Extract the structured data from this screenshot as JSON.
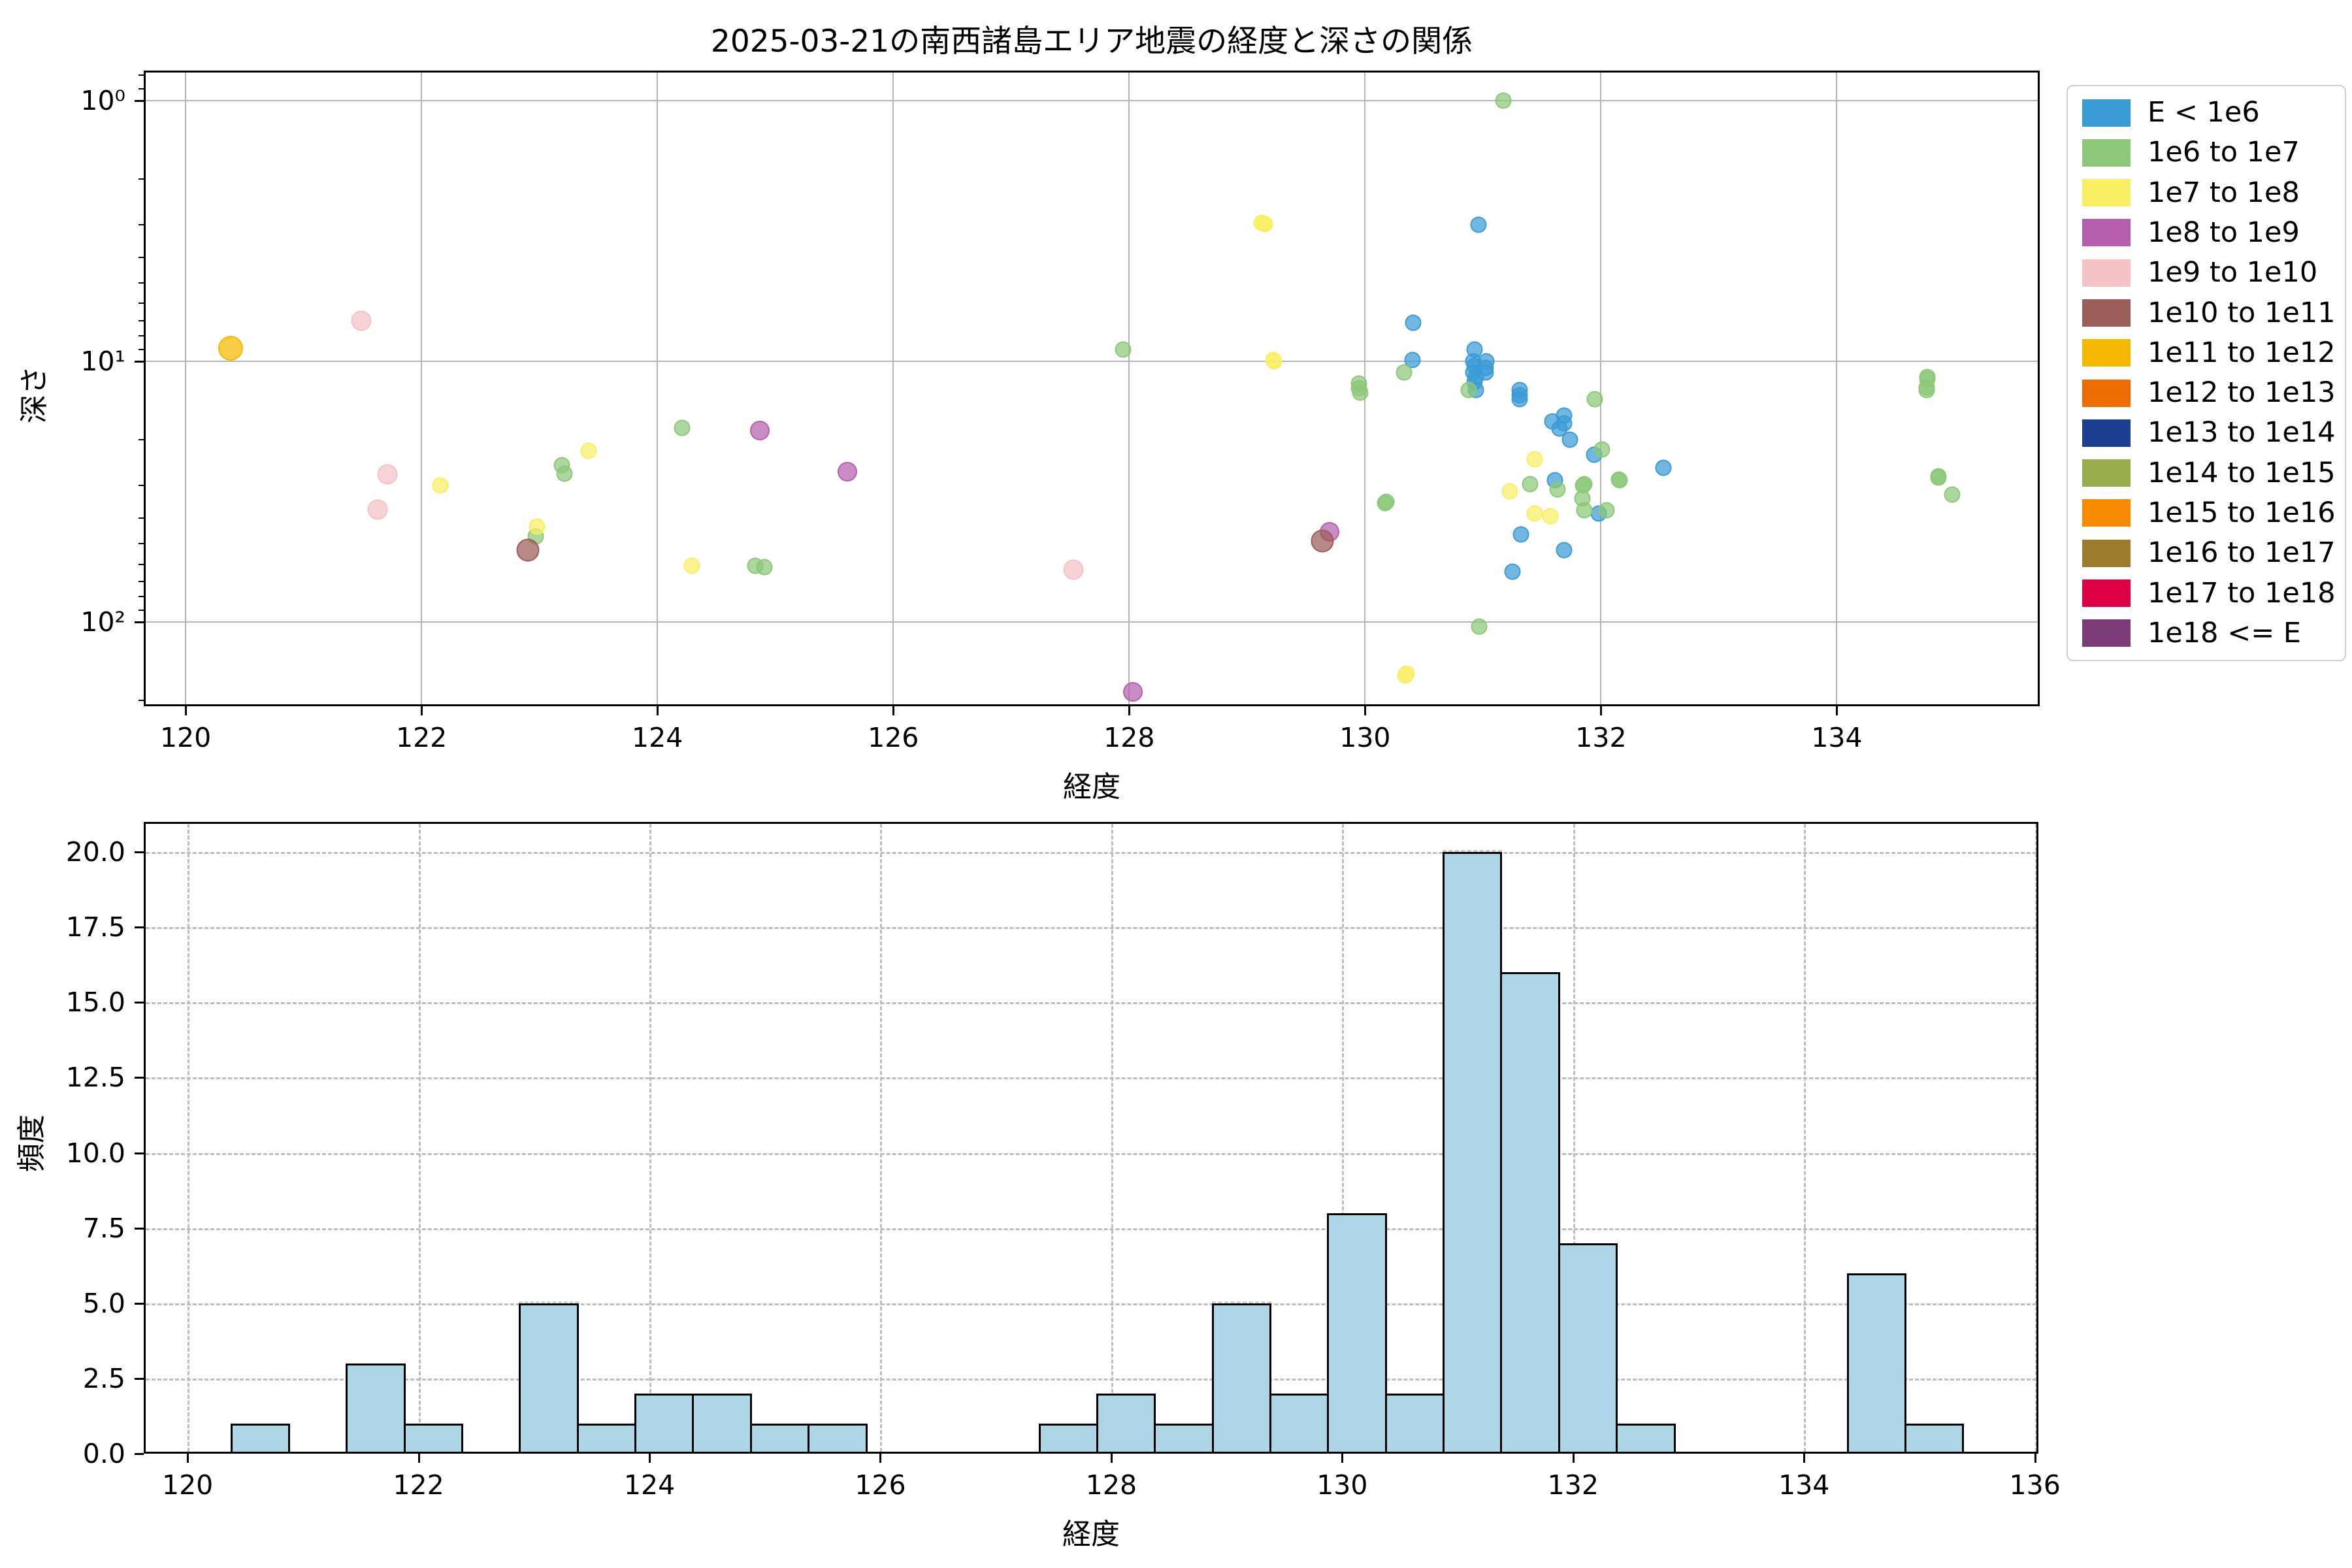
{
  "title": "2025-03-21の南西諸島エリア地震の経度と深さの関係",
  "legend": {
    "entries": [
      {
        "label": "E < 1e6",
        "color": "#3a9bd5"
      },
      {
        "label": "1e6 to 1e7",
        "color": "#8cc878"
      },
      {
        "label": "1e7 to 1e8",
        "color": "#f9ef65"
      },
      {
        "label": "1e8 to 1e9",
        "color": "#b65fae"
      },
      {
        "label": "1e9 to 1e10",
        "color": "#f5c2c6"
      },
      {
        "label": "1e10 to 1e11",
        "color": "#9a5d57"
      },
      {
        "label": "1e11 to 1e12",
        "color": "#f5b800"
      },
      {
        "label": "1e12 to 1e13",
        "color": "#ed6d00"
      },
      {
        "label": "1e13 to 1e14",
        "color": "#1c3e91"
      },
      {
        "label": "1e14 to 1e15",
        "color": "#9aad4c"
      },
      {
        "label": "1e15 to 1e16",
        "color": "#f68a00"
      },
      {
        "label": "1e16 to 1e17",
        "color": "#9d7b2d"
      },
      {
        "label": "1e17 to 1e18",
        "color": "#e00048"
      },
      {
        "label": "1e18 <= E",
        "color": "#7a3b76"
      }
    ]
  },
  "chart_data": [
    {
      "type": "scatter",
      "title": "2025-03-21の南西諸島エリア地震の経度と深さの関係",
      "xlabel": "経度",
      "ylabel": "深さ",
      "xlim": [
        119.645,
        135.72
      ],
      "ylim_depth": [
        0.767,
        210.4
      ],
      "yscale": "log-inverted",
      "grid": "solid",
      "legend_position": "outside-right",
      "xticks": [
        120,
        122,
        124,
        126,
        128,
        130,
        132,
        134
      ],
      "ytick_depths": [
        1,
        10,
        100
      ],
      "ytick_labels": [
        "10⁰",
        "10¹",
        "10²"
      ],
      "minor_tick_depths": [
        0.8,
        0.9,
        2,
        3,
        4,
        5,
        6,
        7,
        8,
        9,
        20,
        30,
        40,
        50,
        60,
        70,
        80,
        90,
        200
      ],
      "series": [
        {
          "name": "E < 1e6",
          "color": "#3a9bd5",
          "size": 21,
          "points": [
            [
              130.96,
              3.0
            ],
            [
              130.41,
              7.1
            ],
            [
              130.4,
              9.9
            ],
            [
              130.93,
              9.0
            ],
            [
              130.92,
              10.0
            ],
            [
              131.03,
              10.0
            ],
            [
              130.92,
              11.0
            ],
            [
              131.02,
              11.0
            ],
            [
              130.94,
              12.9
            ],
            [
              130.93,
              10.4
            ],
            [
              131.02,
              10.6
            ],
            [
              130.94,
              11.5
            ],
            [
              130.93,
              12.0
            ],
            [
              131.31,
              13.5
            ],
            [
              131.31,
              12.9
            ],
            [
              131.31,
              14.0
            ],
            [
              131.59,
              17.0
            ],
            [
              131.69,
              16.1
            ],
            [
              131.69,
              17.3
            ],
            [
              131.65,
              18.1
            ],
            [
              131.74,
              20.0
            ],
            [
              131.61,
              28.6
            ],
            [
              131.32,
              46.0
            ],
            [
              131.69,
              53.0
            ],
            [
              131.25,
              64.0
            ],
            [
              131.94,
              22.8
            ],
            [
              131.98,
              38.4
            ],
            [
              132.53,
              25.6
            ]
          ]
        },
        {
          "name": "1e6 to 1e7",
          "color": "#8cc878",
          "size": 21,
          "points": [
            [
              122.97,
              47.0
            ],
            [
              123.19,
              25.0
            ],
            [
              123.21,
              27.0
            ],
            [
              124.21,
              18.0
            ],
            [
              124.83,
              61.0
            ],
            [
              124.91,
              61.5
            ],
            [
              127.95,
              9.0
            ],
            [
              129.95,
              12.2
            ],
            [
              129.96,
              13.2
            ],
            [
              129.95,
              12.7
            ],
            [
              130.17,
              35.0
            ],
            [
              130.18,
              34.6
            ],
            [
              130.33,
              11.0
            ],
            [
              130.88,
              12.9
            ],
            [
              130.97,
              104.0
            ],
            [
              131.17,
              1.0
            ],
            [
              131.4,
              29.6
            ],
            [
              131.63,
              31.0
            ],
            [
              131.84,
              33.6
            ],
            [
              131.85,
              29.9
            ],
            [
              131.86,
              29.6
            ],
            [
              131.86,
              37.2
            ],
            [
              131.95,
              14.0
            ],
            [
              132.01,
              21.8
            ],
            [
              132.05,
              37.2
            ],
            [
              132.15,
              28.4
            ],
            [
              132.16,
              28.6
            ],
            [
              134.76,
              12.9
            ],
            [
              134.76,
              12.6
            ],
            [
              134.77,
              11.5
            ],
            [
              134.77,
              11.7
            ],
            [
              134.86,
              27.6
            ],
            [
              134.86,
              27.9
            ],
            [
              134.98,
              32.4
            ]
          ]
        },
        {
          "name": "1e7 to 1e8",
          "color": "#f9ef65",
          "size": 21,
          "points": [
            [
              122.16,
              30.0
            ],
            [
              122.98,
              43.0
            ],
            [
              123.42,
              22.0
            ],
            [
              124.29,
              61.0
            ],
            [
              129.14,
              2.96
            ],
            [
              129.12,
              2.94
            ],
            [
              129.15,
              2.98
            ],
            [
              129.23,
              10.0
            ],
            [
              129.22,
              9.9
            ],
            [
              130.34,
              160.0
            ],
            [
              130.35,
              158.0
            ],
            [
              131.23,
              31.5
            ],
            [
              131.44,
              23.8
            ],
            [
              131.44,
              38.4
            ],
            [
              131.57,
              39.3
            ]
          ]
        },
        {
          "name": "1e8 to 1e9",
          "color": "#b65fae",
          "size": 26,
          "points": [
            [
              124.87,
              18.4
            ],
            [
              125.61,
              26.5
            ],
            [
              128.03,
              185.0
            ],
            [
              129.7,
              45.0
            ]
          ]
        },
        {
          "name": "1e9 to 1e10",
          "color": "#f5c2c6",
          "size": 27,
          "points": [
            [
              121.49,
              7.0
            ],
            [
              121.63,
              37.0
            ],
            [
              121.71,
              27.2
            ],
            [
              127.53,
              63.0
            ]
          ]
        },
        {
          "name": "1e10 to 1e11",
          "color": "#9a5d57",
          "size": 31,
          "points": [
            [
              122.9,
              53.0
            ],
            [
              129.64,
              49.0
            ]
          ]
        },
        {
          "name": "1e11 to 1e12",
          "color": "#f5b800",
          "size": 34,
          "points": [
            [
              120.38,
              8.9
            ]
          ]
        }
      ]
    },
    {
      "type": "bar",
      "xlabel": "経度",
      "ylabel": "頻度",
      "xlim": [
        119.62,
        136.03
      ],
      "ylim": [
        0,
        21
      ],
      "grid": "dashed",
      "xticks": [
        120,
        122,
        124,
        126,
        128,
        130,
        132,
        134,
        136
      ],
      "yticks": [
        0,
        2.5,
        5,
        7.5,
        10,
        12.5,
        15,
        17.5,
        20
      ],
      "ytick_labels": [
        "0.0",
        "2.5",
        "5.0",
        "7.5",
        "10.0",
        "12.5",
        "15.0",
        "17.5",
        "20.0"
      ],
      "bin_width": 0.5,
      "bar_color": "#aed6e6",
      "bar_edge": "#000000",
      "bars": [
        {
          "left": 120.37,
          "count": 1
        },
        {
          "left": 121.37,
          "count": 3
        },
        {
          "left": 121.87,
          "count": 1
        },
        {
          "left": 122.87,
          "count": 5
        },
        {
          "left": 123.37,
          "count": 1
        },
        {
          "left": 123.87,
          "count": 2
        },
        {
          "left": 124.37,
          "count": 2
        },
        {
          "left": 124.87,
          "count": 1
        },
        {
          "left": 125.37,
          "count": 1
        },
        {
          "left": 127.37,
          "count": 1
        },
        {
          "left": 127.87,
          "count": 2
        },
        {
          "left": 128.37,
          "count": 1
        },
        {
          "left": 128.87,
          "count": 5
        },
        {
          "left": 129.37,
          "count": 2
        },
        {
          "left": 129.87,
          "count": 8
        },
        {
          "left": 130.37,
          "count": 2
        },
        {
          "left": 130.87,
          "count": 20
        },
        {
          "left": 131.37,
          "count": 16
        },
        {
          "left": 131.87,
          "count": 7
        },
        {
          "left": 132.37,
          "count": 1
        },
        {
          "left": 134.37,
          "count": 6
        },
        {
          "left": 134.87,
          "count": 1
        }
      ]
    }
  ]
}
